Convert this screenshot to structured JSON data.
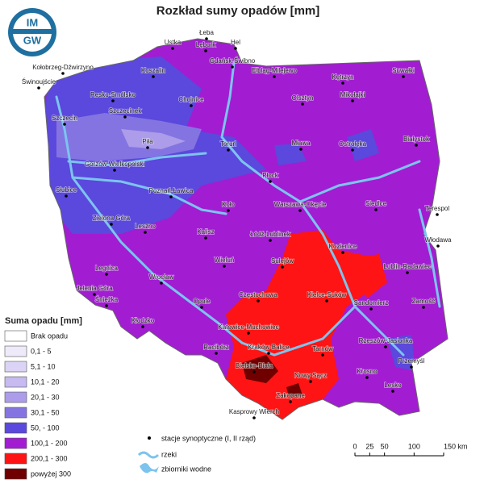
{
  "title": "Rozkład sumy opadów [mm]",
  "logo": [
    "IM",
    "GW"
  ],
  "legend": {
    "title": "Suma opadu [mm]",
    "items": [
      {
        "label": "Brak opadu",
        "color": "#ffffff"
      },
      {
        "label": "0,1 - 5",
        "color": "#efeafa"
      },
      {
        "label": "5,1 - 10",
        "color": "#dcd4f6"
      },
      {
        "label": "10,1 - 20",
        "color": "#c6baf0"
      },
      {
        "label": "20,1 - 30",
        "color": "#ac9cea"
      },
      {
        "label": "30,1 - 50",
        "color": "#8474e2"
      },
      {
        "label": "50, - 100",
        "color": "#5b48dc"
      },
      {
        "label": "100,1 - 200",
        "color": "#a21cd2"
      },
      {
        "label": "200,1 - 300",
        "color": "#fe1414"
      },
      {
        "label": "powyżej 300",
        "color": "#700000"
      }
    ]
  },
  "key": {
    "stations": "stacje synoptyczne (I, II rząd)",
    "rivers": "rzeki",
    "reservoirs": "zbiorniki wodne"
  },
  "scale": {
    "ticks": [
      0,
      25,
      50,
      100,
      {
        "value": 150,
        "label": "150 km"
      }
    ]
  },
  "stations": [
    "Łeba",
    "Ustka",
    "Lębork",
    "Hel",
    "Kołobrzeg-Dźwirzyno",
    "Koszalin",
    "Gdańsk-Świbno",
    "Elbląg-Milejewo",
    "Kętrzyn",
    "Suwałki",
    "Świnoujście",
    "Resko-Smólsko",
    "Chojnice",
    "Olsztyn",
    "Mikołajki",
    "Szczecin",
    "Szczecinek",
    "Piła",
    "Toruń",
    "Mława",
    "Ostrołęka",
    "Białystok",
    "Gorzów Wielkopolski",
    "Płock",
    "Słubice",
    "Poznań-Ławica",
    "Koło",
    "Warszawa-Okęcie",
    "Siedlce",
    "Terespol",
    "Zielona Góra",
    "Leszno",
    "Kalisz",
    "Łódź-Lublinek",
    "Włodawa",
    "Legnica",
    "Wieluń",
    "Sulejów",
    "Kozienice",
    "Lublin-Radawiec",
    "Wrocław",
    "Jelenia Góra",
    "Śnieżka",
    "Opole",
    "Częstochowa",
    "Kielce-Suków",
    "Sandomierz",
    "Zamość",
    "Kłodzko",
    "Katowice-Muchowiec",
    "Racibórz",
    "Kraków-Balice",
    "Tarnów",
    "Rzeszów-Jasionka",
    "Przemyśl",
    "Bielsko-Biała",
    "Nowy Sącz",
    "Krosno",
    "Lesko",
    "Zakopane",
    "Kasprowy Wierch"
  ]
}
